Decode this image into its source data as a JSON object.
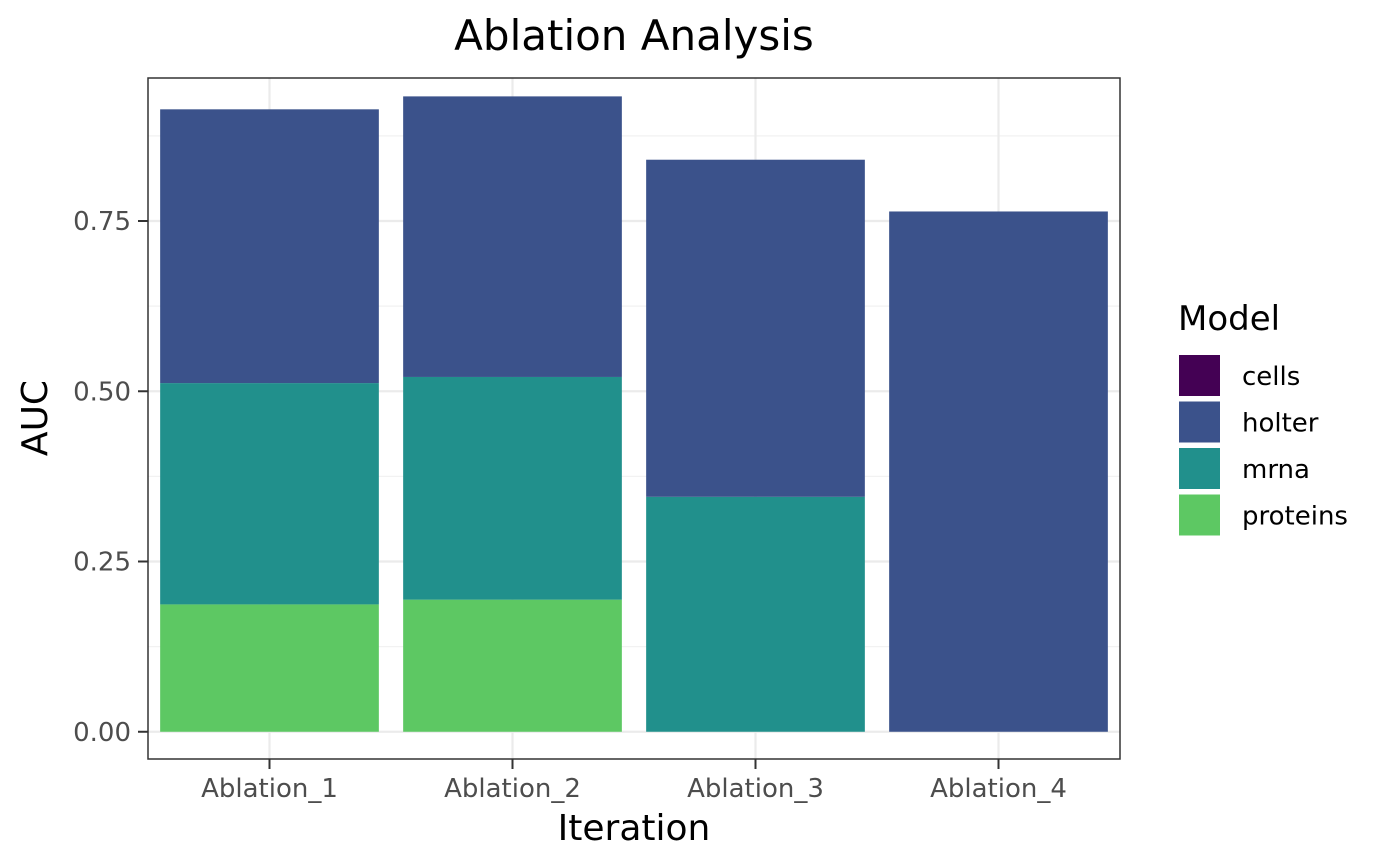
{
  "chart_data": {
    "type": "bar",
    "stacked": true,
    "title": "Ablation Analysis",
    "xlabel": "Iteration",
    "ylabel": "AUC",
    "categories": [
      "Ablation_1",
      "Ablation_2",
      "Ablation_3",
      "Ablation_4"
    ],
    "ylim": [
      -0.04,
      0.96
    ],
    "yticks": [
      0.0,
      0.25,
      0.5,
      0.75
    ],
    "ytick_labels": [
      "0.00",
      "0.25",
      "0.50",
      "0.75"
    ],
    "grid": true,
    "legend": {
      "title": "Model",
      "position": "right"
    },
    "series": [
      {
        "name": "cells",
        "color": "#440154",
        "values": [
          0,
          0,
          0,
          0
        ]
      },
      {
        "name": "holter",
        "color": "#3B528B",
        "values": [
          0.402,
          0.412,
          0.495,
          0.764
        ]
      },
      {
        "name": "mrna",
        "color": "#21908C",
        "values": [
          0.325,
          0.327,
          0.345,
          0
        ]
      },
      {
        "name": "proteins",
        "color": "#5DC863",
        "values": [
          0.187,
          0.194,
          0,
          0
        ]
      }
    ],
    "stack_order_bottom_to_top": [
      "proteins",
      "mrna",
      "holter",
      "cells"
    ]
  }
}
